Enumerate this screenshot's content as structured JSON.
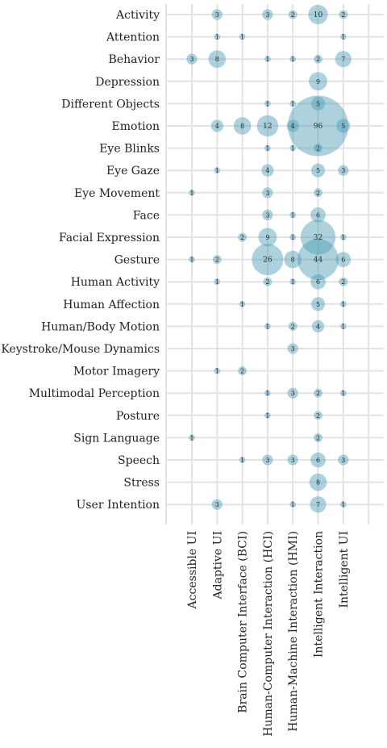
{
  "chart_data": {
    "type": "bubble",
    "title": "",
    "xlabel": "",
    "ylabel": "",
    "grid": true,
    "legend": "none",
    "colors": {
      "bubble": "#4a9cb4",
      "grid": "#e3e3e3",
      "text": "#222222"
    },
    "rows": [
      "Activity",
      "Attention",
      "Behavior",
      "Depression",
      "Different Objects",
      "Emotion",
      "Eye Blinks",
      "Eye Gaze",
      "Eye Movement",
      "Face",
      "Facial Expression",
      "Gesture",
      "Human Activity",
      "Human Affection",
      "Human/Body Motion",
      "Keystroke/Mouse Dynamics",
      "Motor Imagery",
      "Multimodal Perception",
      "Posture",
      "Sign Language",
      "Speech",
      "Stress",
      "User Intention"
    ],
    "columns": [
      "Accessible UI",
      "Adaptive UI",
      "Brain Computer Interface (BCI)",
      "Human-Computer Interaction (HCI)",
      "Human-Machine Interaction (HMI)",
      "Intelligent Interaction",
      "Intelligent UI"
    ],
    "points": [
      {
        "row": "Activity",
        "col": "Adaptive UI",
        "value": 3
      },
      {
        "row": "Activity",
        "col": "Human-Computer Interaction (HCI)",
        "value": 3
      },
      {
        "row": "Activity",
        "col": "Human-Machine Interaction (HMI)",
        "value": 2
      },
      {
        "row": "Activity",
        "col": "Intelligent Interaction",
        "value": 10
      },
      {
        "row": "Activity",
        "col": "Intelligent UI",
        "value": 2
      },
      {
        "row": "Attention",
        "col": "Adaptive UI",
        "value": 1
      },
      {
        "row": "Attention",
        "col": "Brain Computer Interface (BCI)",
        "value": 1
      },
      {
        "row": "Attention",
        "col": "Intelligent UI",
        "value": 1
      },
      {
        "row": "Behavior",
        "col": "Accessible UI",
        "value": 3
      },
      {
        "row": "Behavior",
        "col": "Adaptive UI",
        "value": 8
      },
      {
        "row": "Behavior",
        "col": "Human-Computer Interaction (HCI)",
        "value": 1
      },
      {
        "row": "Behavior",
        "col": "Human-Machine Interaction (HMI)",
        "value": 1
      },
      {
        "row": "Behavior",
        "col": "Intelligent Interaction",
        "value": 2
      },
      {
        "row": "Behavior",
        "col": "Intelligent UI",
        "value": 7
      },
      {
        "row": "Depression",
        "col": "Intelligent Interaction",
        "value": 9
      },
      {
        "row": "Different Objects",
        "col": "Human-Computer Interaction (HCI)",
        "value": 1
      },
      {
        "row": "Different Objects",
        "col": "Human-Machine Interaction (HMI)",
        "value": 1
      },
      {
        "row": "Different Objects",
        "col": "Intelligent Interaction",
        "value": 5
      },
      {
        "row": "Emotion",
        "col": "Adaptive UI",
        "value": 4
      },
      {
        "row": "Emotion",
        "col": "Brain Computer Interface (BCI)",
        "value": 8
      },
      {
        "row": "Emotion",
        "col": "Human-Computer Interaction (HCI)",
        "value": 12
      },
      {
        "row": "Emotion",
        "col": "Human-Machine Interaction (HMI)",
        "value": 4
      },
      {
        "row": "Emotion",
        "col": "Intelligent Interaction",
        "value": 96
      },
      {
        "row": "Emotion",
        "col": "Intelligent UI",
        "value": 5
      },
      {
        "row": "Eye Blinks",
        "col": "Human-Computer Interaction (HCI)",
        "value": 1
      },
      {
        "row": "Eye Blinks",
        "col": "Human-Machine Interaction (HMI)",
        "value": 1
      },
      {
        "row": "Eye Blinks",
        "col": "Intelligent Interaction",
        "value": 2
      },
      {
        "row": "Eye Gaze",
        "col": "Adaptive UI",
        "value": 1
      },
      {
        "row": "Eye Gaze",
        "col": "Human-Computer Interaction (HCI)",
        "value": 4
      },
      {
        "row": "Eye Gaze",
        "col": "Intelligent Interaction",
        "value": 5
      },
      {
        "row": "Eye Gaze",
        "col": "Intelligent UI",
        "value": 3
      },
      {
        "row": "Eye Movement",
        "col": "Accessible UI",
        "value": 1
      },
      {
        "row": "Eye Movement",
        "col": "Human-Computer Interaction (HCI)",
        "value": 3
      },
      {
        "row": "Eye Movement",
        "col": "Intelligent Interaction",
        "value": 2
      },
      {
        "row": "Face",
        "col": "Human-Computer Interaction (HCI)",
        "value": 3
      },
      {
        "row": "Face",
        "col": "Human-Machine Interaction (HMI)",
        "value": 1
      },
      {
        "row": "Face",
        "col": "Intelligent Interaction",
        "value": 6
      },
      {
        "row": "Facial Expression",
        "col": "Brain Computer Interface (BCI)",
        "value": 2
      },
      {
        "row": "Facial Expression",
        "col": "Human-Computer Interaction (HCI)",
        "value": 9
      },
      {
        "row": "Facial Expression",
        "col": "Human-Machine Interaction (HMI)",
        "value": 1
      },
      {
        "row": "Facial Expression",
        "col": "Intelligent Interaction",
        "value": 32
      },
      {
        "row": "Facial Expression",
        "col": "Intelligent UI",
        "value": 1
      },
      {
        "row": "Gesture",
        "col": "Accessible UI",
        "value": 1
      },
      {
        "row": "Gesture",
        "col": "Adaptive UI",
        "value": 2
      },
      {
        "row": "Gesture",
        "col": "Human-Computer Interaction (HCI)",
        "value": 26
      },
      {
        "row": "Gesture",
        "col": "Human-Machine Interaction (HMI)",
        "value": 8
      },
      {
        "row": "Gesture",
        "col": "Intelligent Interaction",
        "value": 44
      },
      {
        "row": "Gesture",
        "col": "Intelligent UI",
        "value": 6
      },
      {
        "row": "Human Activity",
        "col": "Adaptive UI",
        "value": 1
      },
      {
        "row": "Human Activity",
        "col": "Human-Computer Interaction (HCI)",
        "value": 2
      },
      {
        "row": "Human Activity",
        "col": "Human-Machine Interaction (HMI)",
        "value": 1
      },
      {
        "row": "Human Activity",
        "col": "Intelligent Interaction",
        "value": 6
      },
      {
        "row": "Human Activity",
        "col": "Intelligent UI",
        "value": 2
      },
      {
        "row": "Human Affection",
        "col": "Brain Computer Interface (BCI)",
        "value": 1
      },
      {
        "row": "Human Affection",
        "col": "Intelligent Interaction",
        "value": 5
      },
      {
        "row": "Human Affection",
        "col": "Intelligent UI",
        "value": 1
      },
      {
        "row": "Human/Body Motion",
        "col": "Human-Computer Interaction (HCI)",
        "value": 1
      },
      {
        "row": "Human/Body Motion",
        "col": "Human-Machine Interaction (HMI)",
        "value": 2
      },
      {
        "row": "Human/Body Motion",
        "col": "Intelligent Interaction",
        "value": 4
      },
      {
        "row": "Human/Body Motion",
        "col": "Intelligent UI",
        "value": 1
      },
      {
        "row": "Keystroke/Mouse Dynamics",
        "col": "Human-Machine Interaction (HMI)",
        "value": 3
      },
      {
        "row": "Motor Imagery",
        "col": "Adaptive UI",
        "value": 1
      },
      {
        "row": "Motor Imagery",
        "col": "Brain Computer Interface (BCI)",
        "value": 2
      },
      {
        "row": "Multimodal Perception",
        "col": "Human-Computer Interaction (HCI)",
        "value": 1
      },
      {
        "row": "Multimodal Perception",
        "col": "Human-Machine Interaction (HMI)",
        "value": 3
      },
      {
        "row": "Multimodal Perception",
        "col": "Intelligent Interaction",
        "value": 2
      },
      {
        "row": "Multimodal Perception",
        "col": "Intelligent UI",
        "value": 1
      },
      {
        "row": "Posture",
        "col": "Human-Computer Interaction (HCI)",
        "value": 1
      },
      {
        "row": "Posture",
        "col": "Intelligent Interaction",
        "value": 2
      },
      {
        "row": "Sign Language",
        "col": "Accessible UI",
        "value": 1
      },
      {
        "row": "Sign Language",
        "col": "Intelligent Interaction",
        "value": 2
      },
      {
        "row": "Speech",
        "col": "Brain Computer Interface (BCI)",
        "value": 1
      },
      {
        "row": "Speech",
        "col": "Human-Computer Interaction (HCI)",
        "value": 3
      },
      {
        "row": "Speech",
        "col": "Human-Machine Interaction (HMI)",
        "value": 3
      },
      {
        "row": "Speech",
        "col": "Intelligent Interaction",
        "value": 6
      },
      {
        "row": "Speech",
        "col": "Intelligent UI",
        "value": 3
      },
      {
        "row": "Stress",
        "col": "Intelligent Interaction",
        "value": 8
      },
      {
        "row": "User Intention",
        "col": "Adaptive UI",
        "value": 3
      },
      {
        "row": "User Intention",
        "col": "Human-Machine Interaction (HMI)",
        "value": 1
      },
      {
        "row": "User Intention",
        "col": "Intelligent Interaction",
        "value": 7
      },
      {
        "row": "User Intention",
        "col": "Intelligent UI",
        "value": 1
      }
    ]
  }
}
